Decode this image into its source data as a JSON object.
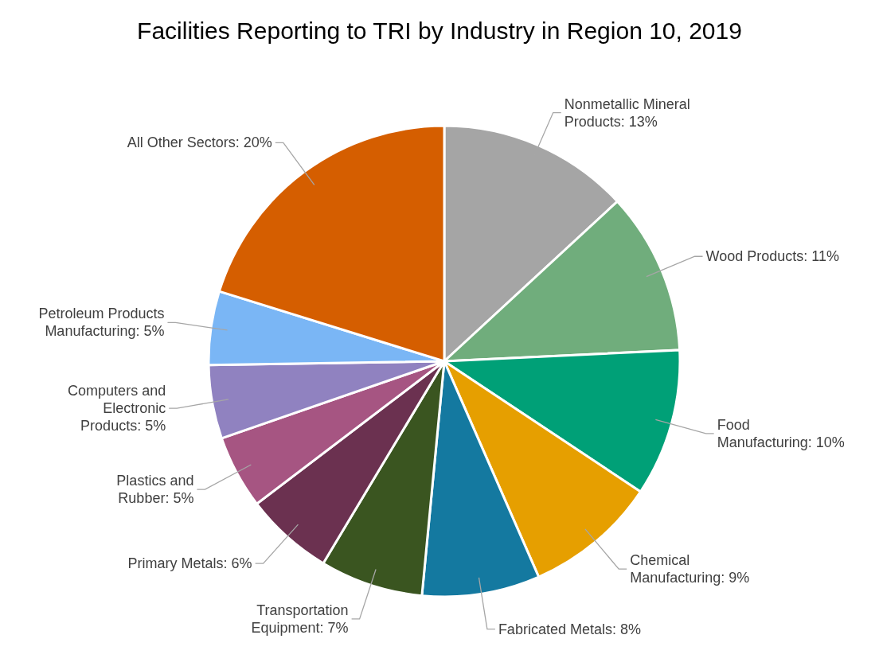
{
  "chart_data": {
    "type": "pie",
    "title": "Facilities Reporting to TRI by Industry in Region 10, 2019",
    "categories": [
      "Nonmetallic Mineral Products",
      "Wood Products",
      "Food Manufacturing",
      "Chemical Manufacturing",
      "Fabricated Metals",
      "Transportation Equipment",
      "Primary Metals",
      "Plastics and Rubber",
      "Computers and Electronic Products",
      "Petroleum Products Manufacturing",
      "All Other Sectors"
    ],
    "values": [
      13,
      11,
      10,
      9,
      8,
      7,
      6,
      5,
      5,
      5,
      20
    ],
    "value_labels": [
      "13%",
      "11%",
      "10%",
      "9%",
      "8%",
      "7%",
      "6%",
      "5%",
      "5%",
      "5%",
      "20%"
    ],
    "colors": [
      "#a5a5a5",
      "#70ad7c",
      "#00a077",
      "#e69f00",
      "#1479a0",
      "#3a5520",
      "#6b3150",
      "#a65582",
      "#9082c0",
      "#7ab6f5",
      "#d55e00"
    ],
    "data_labels": true,
    "legend": false
  }
}
